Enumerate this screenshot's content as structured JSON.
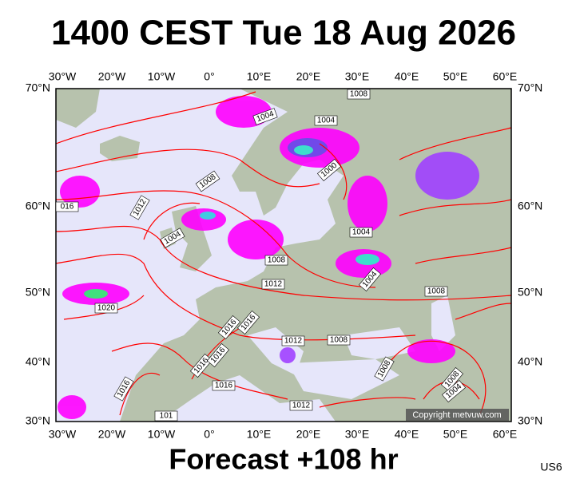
{
  "title": "1400 CEST Tue 18 Aug 2026",
  "footer": "Forecast +108 hr",
  "code": "US6",
  "copyright": "Copyright metvuw.com",
  "lon_labels": [
    "30°W",
    "20°W",
    "10°W",
    "0°",
    "10°E",
    "20°E",
    "30°E",
    "40°E",
    "50°E",
    "60°E"
  ],
  "lat_labels": [
    "70°N",
    "60°N",
    "50°N",
    "40°N",
    "30°N"
  ],
  "isobar_labels": [
    "1008",
    "1004",
    "1004",
    "1000",
    "1008",
    "1012",
    "016",
    "1004",
    "1008",
    "1004",
    "1012",
    "1004",
    "1008",
    "1020",
    "1016",
    "1016",
    "1012",
    "1008",
    "1016",
    "1016",
    "1016",
    "1008",
    "1008",
    "1004",
    "1016",
    "1012",
    "101"
  ]
}
